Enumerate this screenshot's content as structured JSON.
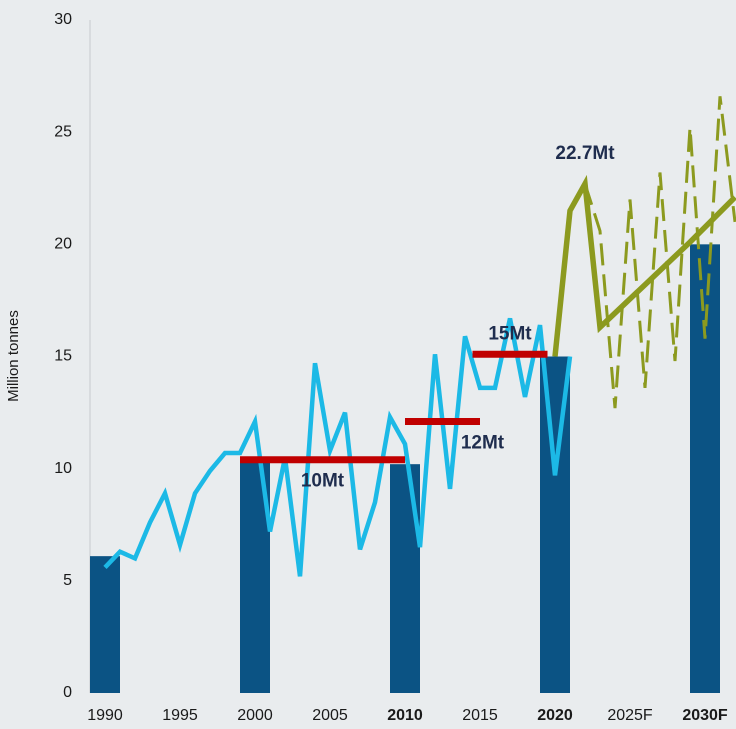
{
  "chart_data": {
    "type": "combo",
    "y_axis_label": "Million tonnes",
    "xlim": [
      1989,
      2032
    ],
    "xticks": [
      1990,
      1995,
      2000,
      2005,
      2010,
      2015,
      2020,
      {
        "value": 2025,
        "label": "2025F"
      },
      {
        "value": 2030,
        "label": "2030F"
      }
    ],
    "highlighted_xticks": [
      2010,
      2020,
      2030
    ],
    "ylim": [
      0,
      30
    ],
    "yticks": [
      0,
      5,
      10,
      15,
      20,
      25,
      30
    ],
    "bars": {
      "color": "#0b5384",
      "x": [
        1990,
        2000,
        2010,
        2020,
        2030
      ],
      "values": [
        6.1,
        10.5,
        10.2,
        15,
        20
      ]
    },
    "series": [
      {
        "color": "#1cb9e6",
        "style": "solid",
        "x": [
          1990,
          1991,
          1992,
          1993,
          1994,
          1995,
          1996,
          1997,
          1998,
          1999,
          2000,
          2001,
          2002,
          2003,
          2004,
          2005,
          2006,
          2007,
          2008,
          2009,
          2010,
          2011,
          2012,
          2013,
          2014,
          2015,
          2016,
          2017,
          2018,
          2019,
          2020,
          2021
        ],
        "values": [
          5.6,
          6.3,
          6.0,
          7.6,
          8.9,
          6.6,
          8.9,
          9.9,
          10.7,
          10.7,
          12.1,
          7.2,
          10.5,
          5.2,
          14.7,
          10.8,
          12.5,
          6.4,
          8.5,
          12.3,
          11.1,
          6.5,
          15.1,
          9.1,
          15.9,
          13.6,
          13.6,
          16.7,
          13.2,
          16.4,
          9.7,
          15.0
        ]
      },
      {
        "color": "#8c9a1f",
        "style": "solid",
        "x": [
          2020,
          2021,
          2022,
          2023,
          2026,
          2029,
          2032
        ],
        "values": [
          15,
          21.5,
          22.7,
          16.3,
          18.2,
          20.1,
          22.1
        ]
      },
      {
        "color": "#8c9a1f",
        "style": "dashed",
        "x": [
          2022,
          2023,
          2024,
          2025,
          2026,
          2027,
          2028,
          2029,
          2030,
          2031,
          2032
        ],
        "values": [
          22.7,
          20.6,
          12.7,
          22.0,
          13.6,
          23.2,
          14.8,
          25.2,
          15.8,
          26.6,
          21.0
        ]
      }
    ],
    "averages": [
      {
        "label": "10Mt",
        "x": [
          1999,
          2010
        ],
        "value": 10.4
      },
      {
        "label": "12Mt",
        "x": [
          2010,
          2015
        ],
        "value": 12.1
      },
      {
        "label": "15Mt",
        "x": [
          2014.5,
          2019.5
        ],
        "value": 15.1
      }
    ],
    "averages_color": "#c00000",
    "annotation": "22.7Mt"
  }
}
